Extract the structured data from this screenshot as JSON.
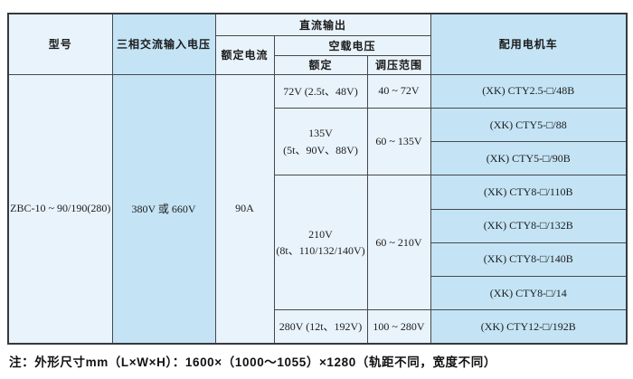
{
  "table": {
    "headers": {
      "model": "型号",
      "ac_input": "三相交流输入电压",
      "dc_output": "直流输出",
      "rated_current": "额定电流",
      "no_load_voltage": "空载电压",
      "rated": "额定",
      "regulation_range": "调压范围",
      "locomotive": "配用电机车"
    },
    "model_value": "ZBC-10 ~ 90/190(280)",
    "ac_input_value": "380V 或 660V",
    "rated_current_value": "90A",
    "voltage_groups": [
      {
        "rated_lines": [
          "72V (2.5t、48V)"
        ],
        "range": "40 ~ 72V",
        "locomotives": [
          "(XK) CTY2.5-□/48B"
        ]
      },
      {
        "rated_lines": [
          "135V",
          "(5t、90V、88V)"
        ],
        "range": "60 ~ 135V",
        "locomotives": [
          "(XK) CTY5-□/88",
          "(XK) CTY5-□/90B"
        ]
      },
      {
        "rated_lines": [
          "210V",
          "(8t、110/132/140V)"
        ],
        "range": "60 ~ 210V",
        "locomotives": [
          "(XK) CTY8-□/110B",
          "(XK) CTY8-□/132B",
          "(XK) CTY8-□/140B",
          "(XK) CTY8-□/14"
        ]
      },
      {
        "rated_lines": [
          "280V (12t、192V)"
        ],
        "range": "100 ~ 280V",
        "locomotives": [
          "(XK) CTY12-□/192B"
        ]
      }
    ]
  },
  "note": "注：外形尺寸mm（L×W×H）：1600×（1000～1055）×1280（轨距不同，宽度不同）",
  "colors": {
    "cell_light": "#e9f3fb",
    "cell_medium": "#c4e4f6",
    "border": "#45484c",
    "text": "#1b1b1b"
  }
}
